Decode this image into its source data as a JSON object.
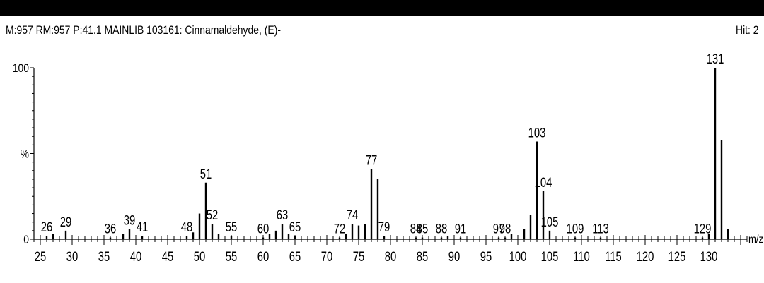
{
  "header": {
    "info": "M:957 RM:957 P:41.1 MAINLIB 103161: Cinnamaldehyde, (E)-",
    "hit": "Hit: 2"
  },
  "chart_data": {
    "type": "bar",
    "title": "",
    "xlabel": "m/z",
    "ylabel": "%",
    "xlim": [
      24,
      136
    ],
    "ylim": [
      0,
      100
    ],
    "y_ticks": [
      "0",
      "%",
      "100"
    ],
    "x_ticks": [
      25,
      30,
      35,
      40,
      45,
      50,
      55,
      60,
      65,
      70,
      75,
      80,
      85,
      90,
      95,
      100,
      105,
      110,
      115,
      120,
      125,
      130
    ],
    "grid": false,
    "peaks": [
      {
        "mz": 26,
        "intensity": 2,
        "label": "26"
      },
      {
        "mz": 27,
        "intensity": 3,
        "label": ""
      },
      {
        "mz": 29,
        "intensity": 5,
        "label": "29"
      },
      {
        "mz": 36,
        "intensity": 1,
        "label": "36"
      },
      {
        "mz": 38,
        "intensity": 3,
        "label": ""
      },
      {
        "mz": 39,
        "intensity": 6,
        "label": "39"
      },
      {
        "mz": 41,
        "intensity": 2,
        "label": "41"
      },
      {
        "mz": 48,
        "intensity": 2,
        "label": "48"
      },
      {
        "mz": 49,
        "intensity": 4,
        "label": ""
      },
      {
        "mz": 50,
        "intensity": 15,
        "label": ""
      },
      {
        "mz": 51,
        "intensity": 33,
        "label": "51"
      },
      {
        "mz": 52,
        "intensity": 9,
        "label": "52"
      },
      {
        "mz": 53,
        "intensity": 3,
        "label": ""
      },
      {
        "mz": 55,
        "intensity": 2,
        "label": "55"
      },
      {
        "mz": 60,
        "intensity": 1,
        "label": "60"
      },
      {
        "mz": 61,
        "intensity": 3,
        "label": ""
      },
      {
        "mz": 62,
        "intensity": 5,
        "label": ""
      },
      {
        "mz": 63,
        "intensity": 9,
        "label": "63"
      },
      {
        "mz": 64,
        "intensity": 3,
        "label": ""
      },
      {
        "mz": 65,
        "intensity": 2,
        "label": "65"
      },
      {
        "mz": 72,
        "intensity": 1,
        "label": "72"
      },
      {
        "mz": 73,
        "intensity": 3,
        "label": ""
      },
      {
        "mz": 74,
        "intensity": 9,
        "label": "74"
      },
      {
        "mz": 75,
        "intensity": 8,
        "label": ""
      },
      {
        "mz": 76,
        "intensity": 9,
        "label": ""
      },
      {
        "mz": 77,
        "intensity": 41,
        "label": "77"
      },
      {
        "mz": 78,
        "intensity": 35,
        "label": ""
      },
      {
        "mz": 79,
        "intensity": 2,
        "label": "79"
      },
      {
        "mz": 84,
        "intensity": 1,
        "label": "84"
      },
      {
        "mz": 85,
        "intensity": 1,
        "label": "85"
      },
      {
        "mz": 88,
        "intensity": 1,
        "label": "88"
      },
      {
        "mz": 89,
        "intensity": 2,
        "label": ""
      },
      {
        "mz": 91,
        "intensity": 1,
        "label": "91"
      },
      {
        "mz": 97,
        "intensity": 1,
        "label": "97"
      },
      {
        "mz": 98,
        "intensity": 1,
        "label": "98"
      },
      {
        "mz": 99,
        "intensity": 3,
        "label": ""
      },
      {
        "mz": 101,
        "intensity": 6,
        "label": ""
      },
      {
        "mz": 102,
        "intensity": 14,
        "label": ""
      },
      {
        "mz": 103,
        "intensity": 57,
        "label": "103"
      },
      {
        "mz": 104,
        "intensity": 28,
        "label": "104"
      },
      {
        "mz": 105,
        "intensity": 5,
        "label": "105"
      },
      {
        "mz": 109,
        "intensity": 1,
        "label": "109"
      },
      {
        "mz": 113,
        "intensity": 1,
        "label": "113"
      },
      {
        "mz": 129,
        "intensity": 1,
        "label": "129"
      },
      {
        "mz": 130,
        "intensity": 3,
        "label": ""
      },
      {
        "mz": 131,
        "intensity": 100,
        "label": "131"
      },
      {
        "mz": 132,
        "intensity": 58,
        "label": ""
      },
      {
        "mz": 133,
        "intensity": 6,
        "label": ""
      }
    ]
  }
}
